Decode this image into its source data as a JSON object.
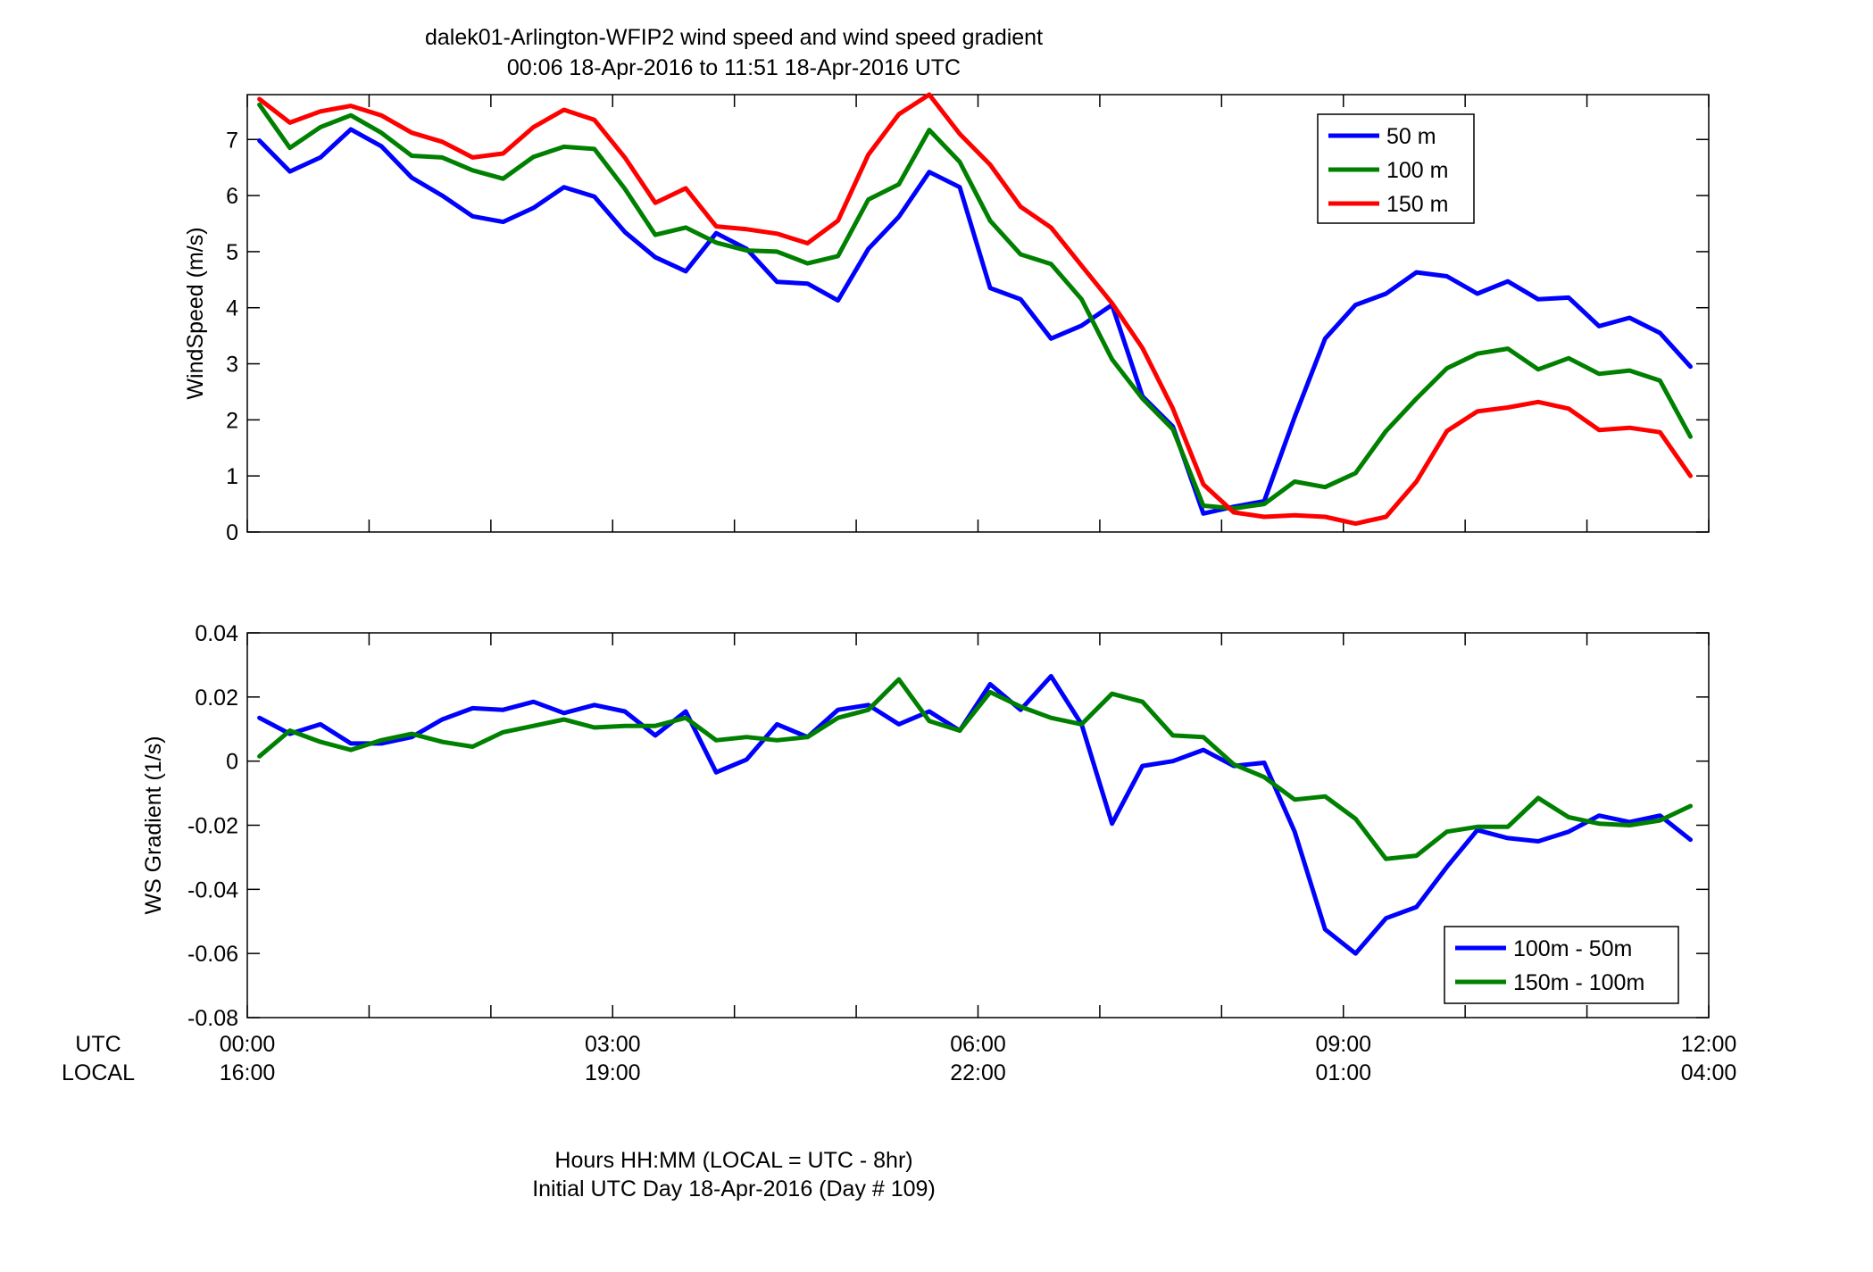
{
  "figure": {
    "title_line1": "dalek01-Arlington-WFIP2  wind speed and wind speed gradient",
    "title_line2": "00:06 18-Apr-2016 to 11:51 18-Apr-2016  UTC",
    "xlabel_line1": "Hours HH:MM  (LOCAL = UTC - 8hr)",
    "xlabel_line2": "Initial UTC Day 18-Apr-2016 (Day # 109)",
    "row_label_utc": "UTC",
    "row_label_local": "LOCAL",
    "utc_ticks": [
      "00:00",
      "03:00",
      "06:00",
      "09:00",
      "12:00"
    ],
    "local_ticks": [
      "16:00",
      "19:00",
      "22:00",
      "01:00",
      "04:00"
    ]
  },
  "chart_data": [
    {
      "type": "line",
      "ylabel": "WindSpeed (m/s)",
      "xlim": [
        0,
        12
      ],
      "ylim": [
        0,
        7.8
      ],
      "yticks": [
        0,
        1,
        2,
        3,
        4,
        5,
        6,
        7
      ],
      "ytick_labels": [
        "0",
        "1",
        "2",
        "3",
        "4",
        "5",
        "6",
        "7"
      ],
      "x_unit": "hours UTC",
      "legend_position": "top-right",
      "x": [
        0.1,
        0.35,
        0.6,
        0.85,
        1.1,
        1.35,
        1.6,
        1.85,
        2.1,
        2.35,
        2.6,
        2.85,
        3.1,
        3.35,
        3.6,
        3.85,
        4.1,
        4.35,
        4.6,
        4.85,
        5.1,
        5.35,
        5.6,
        5.85,
        6.1,
        6.35,
        6.6,
        6.85,
        7.1,
        7.35,
        7.6,
        7.85,
        8.1,
        8.35,
        8.6,
        8.85,
        9.1,
        9.35,
        9.6,
        9.85,
        10.1,
        10.35,
        10.6,
        10.85,
        11.1,
        11.35,
        11.6,
        11.85
      ],
      "series": [
        {
          "name": "50 m",
          "color": "#0000ff",
          "values": [
            6.98,
            6.43,
            6.68,
            7.18,
            6.88,
            6.32,
            6.0,
            5.63,
            5.53,
            5.78,
            6.15,
            5.98,
            5.35,
            4.9,
            4.65,
            5.33,
            5.05,
            4.46,
            4.43,
            4.13,
            5.05,
            5.62,
            6.42,
            6.15,
            4.35,
            4.15,
            3.45,
            3.68,
            4.05,
            2.42,
            1.88,
            0.33,
            0.45,
            0.55,
            2.05,
            3.45,
            4.05,
            4.25,
            4.63,
            4.56,
            4.25,
            4.47,
            4.15,
            4.18,
            3.67,
            3.82,
            3.55,
            2.95
          ]
        },
        {
          "name": "100 m",
          "color": "#008000",
          "values": [
            7.62,
            6.85,
            7.22,
            7.43,
            7.12,
            6.71,
            6.68,
            6.45,
            6.3,
            6.69,
            6.87,
            6.83,
            6.12,
            5.3,
            5.43,
            5.16,
            5.02,
            5.0,
            4.79,
            4.92,
            5.93,
            6.2,
            7.17,
            6.6,
            5.55,
            4.95,
            4.78,
            4.15,
            3.08,
            2.38,
            1.83,
            0.47,
            0.42,
            0.5,
            0.9,
            0.8,
            1.05,
            1.8,
            2.38,
            2.92,
            3.18,
            3.27,
            2.9,
            3.1,
            2.82,
            2.88,
            2.7,
            1.7
          ]
        },
        {
          "name": "150 m",
          "color": "#ff0000",
          "values": [
            7.72,
            7.3,
            7.5,
            7.6,
            7.43,
            7.12,
            6.96,
            6.68,
            6.75,
            7.22,
            7.53,
            7.35,
            6.68,
            5.87,
            6.13,
            5.45,
            5.4,
            5.32,
            5.15,
            5.55,
            6.73,
            7.45,
            7.8,
            7.1,
            6.55,
            5.8,
            5.43,
            4.75,
            4.08,
            3.28,
            2.2,
            0.85,
            0.35,
            0.27,
            0.3,
            0.27,
            0.15,
            0.27,
            0.9,
            1.8,
            2.15,
            2.22,
            2.32,
            2.2,
            1.82,
            1.86,
            1.78,
            1.0
          ]
        }
      ]
    },
    {
      "type": "line",
      "ylabel": "WS Gradient (1/s)",
      "xlim": [
        0,
        12
      ],
      "ylim": [
        -0.08,
        0.04
      ],
      "yticks": [
        -0.08,
        -0.06,
        -0.04,
        -0.02,
        0,
        0.02,
        0.04
      ],
      "ytick_labels": [
        "-0.08",
        "-0.06",
        "-0.04",
        "-0.02",
        "0",
        "0.02",
        "0.04"
      ],
      "x_unit": "hours UTC",
      "legend_position": "bottom-right",
      "x": [
        0.1,
        0.35,
        0.6,
        0.85,
        1.1,
        1.35,
        1.6,
        1.85,
        2.1,
        2.35,
        2.6,
        2.85,
        3.1,
        3.35,
        3.6,
        3.85,
        4.1,
        4.35,
        4.6,
        4.85,
        5.1,
        5.35,
        5.6,
        5.85,
        6.1,
        6.35,
        6.6,
        6.85,
        7.1,
        7.35,
        7.6,
        7.85,
        8.1,
        8.35,
        8.6,
        8.85,
        9.1,
        9.35,
        9.6,
        9.85,
        10.1,
        10.35,
        10.6,
        10.85,
        11.1,
        11.35,
        11.6,
        11.85
      ],
      "series": [
        {
          "name": "100m - 50m",
          "color": "#0000ff",
          "values": [
            0.0135,
            0.0085,
            0.0115,
            0.0055,
            0.0055,
            0.0075,
            0.013,
            0.0165,
            0.016,
            0.0185,
            0.015,
            0.0175,
            0.0155,
            0.008,
            0.0155,
            -0.0035,
            0.0005,
            0.0115,
            0.0075,
            0.016,
            0.0175,
            0.0115,
            0.0155,
            0.0095,
            0.024,
            0.016,
            0.0265,
            0.0115,
            -0.0195,
            -0.0015,
            0.0,
            0.0035,
            -0.0015,
            -0.0005,
            -0.022,
            -0.0525,
            -0.06,
            -0.049,
            -0.0455,
            -0.033,
            -0.0215,
            -0.024,
            -0.025,
            -0.022,
            -0.017,
            -0.019,
            -0.017,
            -0.0245
          ]
        },
        {
          "name": "150m - 100m",
          "color": "#008000",
          "values": [
            0.0015,
            0.0095,
            0.006,
            0.0035,
            0.0065,
            0.0085,
            0.006,
            0.0045,
            0.009,
            0.011,
            0.013,
            0.0105,
            0.011,
            0.011,
            0.0135,
            0.0065,
            0.0075,
            0.0065,
            0.0075,
            0.0135,
            0.016,
            0.0255,
            0.0125,
            0.0095,
            0.0215,
            0.017,
            0.0135,
            0.0115,
            0.021,
            0.0185,
            0.008,
            0.0075,
            -0.001,
            -0.005,
            -0.012,
            -0.011,
            -0.018,
            -0.0305,
            -0.0295,
            -0.022,
            -0.0205,
            -0.0205,
            -0.0115,
            -0.0175,
            -0.0195,
            -0.02,
            -0.0185,
            -0.014
          ]
        }
      ]
    }
  ]
}
